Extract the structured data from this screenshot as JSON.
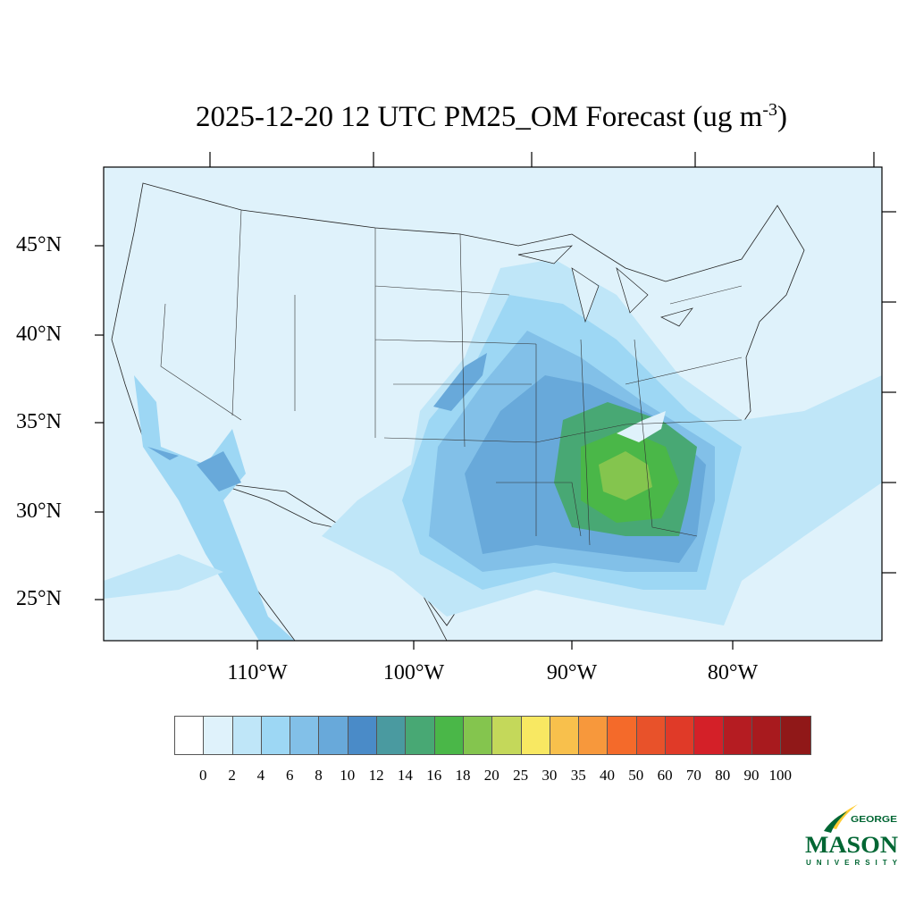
{
  "title": {
    "main": "2025-12-20 12 UTC PM25_OM Forecast (ug m",
    "sup": "-3",
    "close": ")"
  },
  "lat_labels": [
    "45°N",
    "40°N",
    "35°N",
    "30°N",
    "25°N"
  ],
  "lon_labels": [
    "110°W",
    "100°W",
    "90°W",
    "80°W"
  ],
  "colorbar": {
    "labels": [
      "0",
      "2",
      "4",
      "6",
      "8",
      "10",
      "12",
      "14",
      "16",
      "18",
      "20",
      "25",
      "30",
      "35",
      "40",
      "50",
      "60",
      "70",
      "80",
      "90",
      "100"
    ],
    "colors": [
      "#ffffff",
      "#dff2fb",
      "#bfe6f8",
      "#9dd7f4",
      "#82c0e8",
      "#68a9da",
      "#4a8bc8",
      "#4a9aa0",
      "#48a874",
      "#4ab748",
      "#84c54e",
      "#c4d85a",
      "#f8e862",
      "#f8c04c",
      "#f7983c",
      "#f46a2a",
      "#e8522a",
      "#e03a28",
      "#d42028",
      "#b51c22",
      "#a81a1e",
      "#901818"
    ]
  },
  "logo": {
    "line1": "GEORGE",
    "line2": "MASON",
    "line3": "UNIVERSITY",
    "green": "#006633",
    "gold": "#ffcc33"
  }
}
